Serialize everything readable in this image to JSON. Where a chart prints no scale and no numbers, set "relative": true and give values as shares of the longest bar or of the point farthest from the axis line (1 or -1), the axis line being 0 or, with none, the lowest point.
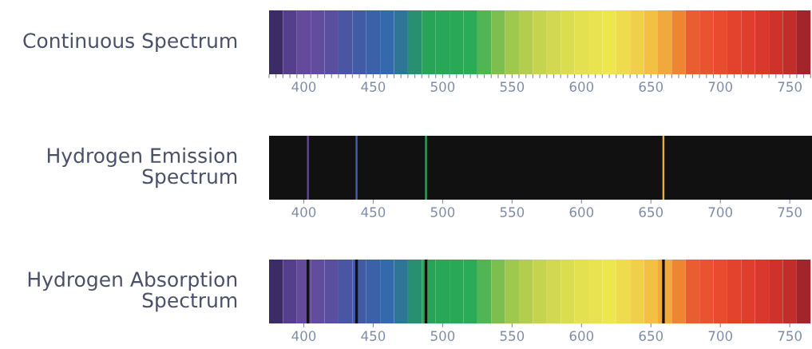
{
  "chart_data": [
    {
      "type": "bar",
      "title": "Continuous Spectrum",
      "relative": true,
      "xlim": [
        375,
        766
      ],
      "tick_labels": "x",
      "x": [
        380,
        390,
        400,
        410,
        420,
        430,
        440,
        450,
        460,
        470,
        480,
        490,
        500,
        510,
        520,
        530,
        540,
        550,
        560,
        570,
        580,
        590,
        600,
        610,
        620,
        630,
        640,
        650,
        660,
        670,
        680,
        690,
        700,
        710,
        720,
        730,
        740,
        750,
        760
      ],
      "values": [
        1,
        1,
        1,
        1,
        1,
        1,
        1,
        1,
        1,
        1,
        1,
        1,
        1,
        1,
        1,
        1,
        1,
        1,
        1,
        1,
        1,
        1,
        1,
        1,
        1,
        1,
        1,
        1,
        1,
        1,
        1,
        1,
        1,
        1,
        1,
        1,
        1,
        1,
        1
      ],
      "colors": [
        "#3b2c66",
        "#553f8c",
        "#654a9c",
        "#614c9d",
        "#5a4f9f",
        "#4a56a1",
        "#425ba5",
        "#3b62a9",
        "#3469ad",
        "#2e7596",
        "#288f70",
        "#27a458",
        "#28a756",
        "#29a956",
        "#2aab55",
        "#50b552",
        "#7cbf4f",
        "#9ec94d",
        "#b3ce4e",
        "#c5d44f",
        "#d2d950",
        "#dbdd50",
        "#e3e14f",
        "#e8e34f",
        "#ede64e",
        "#efdc4c",
        "#f0d04a",
        "#f2c043",
        "#f1a83c",
        "#ee8535",
        "#ea5d30",
        "#e9532f",
        "#e84c2e",
        "#e3432d",
        "#df3e2d",
        "#da382c",
        "#cf322b",
        "#c02d2a",
        "#a3242a"
      ],
      "xticks": [
        {
          "value": 375,
          "label": null
        },
        {
          "value": 380,
          "label": null
        },
        {
          "value": 385,
          "label": null
        },
        {
          "value": 390,
          "label": null
        },
        {
          "value": 395,
          "label": null
        },
        400,
        {
          "value": 405,
          "label": null
        },
        {
          "value": 410,
          "label": null
        },
        {
          "value": 415,
          "label": null
        },
        {
          "value": 420,
          "label": null
        },
        {
          "value": 425,
          "label": null
        },
        {
          "value": 430,
          "label": null
        },
        {
          "value": 435,
          "label": null
        },
        {
          "value": 440,
          "label": null
        },
        {
          "value": 445,
          "label": null
        },
        450,
        {
          "value": 455,
          "label": null
        },
        {
          "value": 460,
          "label": null
        },
        {
          "value": 465,
          "label": null
        },
        {
          "value": 470,
          "label": null
        },
        {
          "value": 475,
          "label": null
        },
        {
          "value": 480,
          "label": null
        },
        {
          "value": 485,
          "label": null
        },
        {
          "value": 490,
          "label": null
        },
        {
          "value": 495,
          "label": null
        },
        500,
        {
          "value": 505,
          "label": null
        },
        {
          "value": 510,
          "label": null
        },
        {
          "value": 515,
          "label": null
        },
        {
          "value": 520,
          "label": null
        },
        {
          "value": 525,
          "label": null
        },
        {
          "value": 530,
          "label": null
        },
        {
          "value": 535,
          "label": null
        },
        {
          "value": 540,
          "label": null
        },
        {
          "value": 545,
          "label": null
        },
        550,
        {
          "value": 555,
          "label": null
        },
        {
          "value": 560,
          "label": null
        },
        {
          "value": 565,
          "label": null
        },
        {
          "value": 570,
          "label": null
        },
        {
          "value": 575,
          "label": null
        },
        {
          "value": 580,
          "label": null
        },
        {
          "value": 585,
          "label": null
        },
        {
          "value": 590,
          "label": null
        },
        {
          "value": 595,
          "label": null
        },
        600,
        {
          "value": 605,
          "label": null
        },
        {
          "value": 610,
          "label": null
        },
        {
          "value": 615,
          "label": null
        },
        {
          "value": 620,
          "label": null
        },
        {
          "value": 625,
          "label": null
        },
        {
          "value": 630,
          "label": null
        },
        {
          "value": 635,
          "label": null
        },
        {
          "value": 640,
          "label": null
        },
        {
          "value": 645,
          "label": null
        },
        650,
        {
          "value": 655,
          "label": null
        },
        {
          "value": 660,
          "label": null
        },
        {
          "value": 665,
          "label": null
        },
        {
          "value": 670,
          "label": null
        },
        {
          "value": 675,
          "label": null
        },
        {
          "value": 680,
          "label": null
        },
        {
          "value": 685,
          "label": null
        },
        {
          "value": 690,
          "label": null
        },
        {
          "value": 695,
          "label": null
        },
        700,
        {
          "value": 705,
          "label": null
        },
        {
          "value": 710,
          "label": null
        },
        {
          "value": 715,
          "label": null
        },
        {
          "value": 720,
          "label": null
        },
        {
          "value": 725,
          "label": null
        },
        {
          "value": 730,
          "label": null
        },
        {
          "value": 735,
          "label": null
        },
        {
          "value": 740,
          "label": null
        },
        {
          "value": 745,
          "label": null
        },
        750,
        {
          "value": 755,
          "label": null
        },
        {
          "value": 760,
          "label": null
        },
        {
          "value": 765,
          "label": null
        }
      ]
    },
    {
      "type": "bar",
      "title": "Hydrogen Emission\nSpectrum",
      "relative": true,
      "xlim": [
        375,
        766
      ],
      "tick_labels": "x",
      "x": [
        403,
        438,
        488,
        659
      ],
      "values": [
        1,
        1,
        1,
        1
      ],
      "colors": [
        "#5e4598",
        "#3d62a8",
        "#27a556",
        "#f0a840"
      ],
      "xticks": [
        400,
        450,
        500,
        550,
        600,
        650,
        700,
        750
      ],
      "bands": [
        {
          "axis": "x",
          "from": 375,
          "to": 766,
          "color": "#111111"
        }
      ]
    },
    {
      "type": "bar",
      "title": "Hydrogen Absorption\nSpectrum",
      "relative": true,
      "xlim": [
        375,
        766
      ],
      "tick_labels": "x",
      "x": [
        380,
        390,
        400,
        410,
        420,
        430,
        440,
        450,
        460,
        470,
        480,
        490,
        500,
        510,
        520,
        530,
        540,
        550,
        560,
        570,
        580,
        590,
        600,
        610,
        620,
        630,
        640,
        650,
        660,
        670,
        680,
        690,
        700,
        710,
        720,
        730,
        740,
        750,
        760
      ],
      "values": [
        1,
        1,
        1,
        1,
        1,
        1,
        1,
        1,
        1,
        1,
        1,
        1,
        1,
        1,
        1,
        1,
        1,
        1,
        1,
        1,
        1,
        1,
        1,
        1,
        1,
        1,
        1,
        1,
        1,
        1,
        1,
        1,
        1,
        1,
        1,
        1,
        1,
        1,
        1
      ],
      "colors": [
        "#3b2c66",
        "#553f8c",
        "#654a9c",
        "#614c9d",
        "#5a4f9f",
        "#4a56a1",
        "#425ba5",
        "#3b62a9",
        "#3469ad",
        "#2e7596",
        "#288f70",
        "#27a458",
        "#28a756",
        "#29a956",
        "#2aab55",
        "#50b552",
        "#7cbf4f",
        "#9ec94d",
        "#b3ce4e",
        "#c5d44f",
        "#d2d950",
        "#dbdd50",
        "#e3e14f",
        "#e8e34f",
        "#ede64e",
        "#efdc4c",
        "#f0d04a",
        "#f2c043",
        "#f1a83c",
        "#ee8535",
        "#ea5d30",
        "#e9532f",
        "#e84c2e",
        "#e3432d",
        "#df3e2d",
        "#da382c",
        "#cf322b",
        "#c02d2a",
        "#a3242a"
      ],
      "xticks": [
        400,
        450,
        500,
        550,
        600,
        650,
        700,
        750
      ],
      "ref_lines": [
        {
          "axis": "x",
          "value": 403,
          "color": "#111111"
        },
        {
          "axis": "x",
          "value": 438,
          "color": "#111111"
        },
        {
          "axis": "x",
          "value": 488,
          "color": "#111111"
        },
        {
          "axis": "x",
          "value": 659,
          "color": "#111111"
        }
      ]
    }
  ]
}
